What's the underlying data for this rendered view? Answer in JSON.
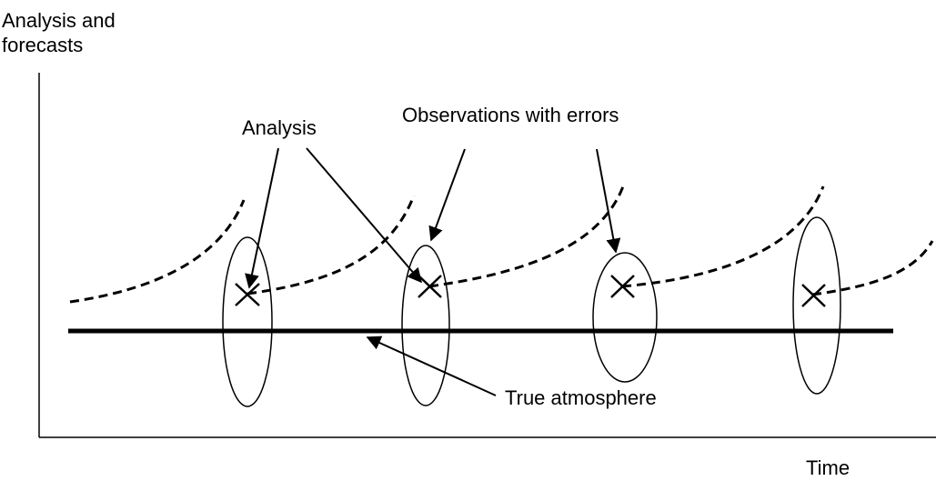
{
  "axes": {
    "y_label_line1": "Analysis and",
    "y_label_line2": "forecasts",
    "x_label": "Time"
  },
  "labels": {
    "analysis": "Analysis",
    "observations": "Observations with errors",
    "true_atmosphere": "True atmosphere"
  },
  "legend_semantics": {
    "dashed_line": "forecast",
    "x_mark": "analysis",
    "ellipse": "observation-error",
    "solid_line": "true-atmosphere"
  }
}
